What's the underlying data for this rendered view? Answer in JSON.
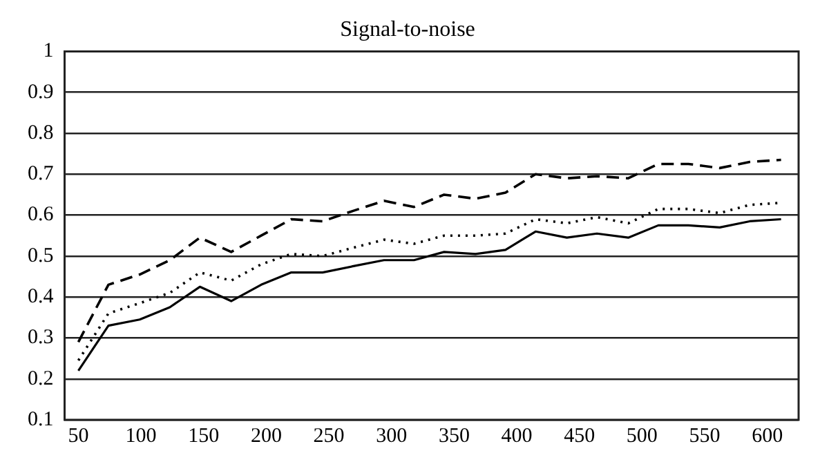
{
  "chart_data": {
    "type": "line",
    "title": "Signal-to-noise",
    "x": [
      50,
      74,
      99,
      123,
      147,
      172,
      196,
      220,
      245,
      269,
      294,
      318,
      342,
      367,
      391,
      415,
      440,
      464,
      489,
      513,
      537,
      562,
      586,
      611
    ],
    "series": [
      {
        "color": "#000000",
        "line_style": "dashed",
        "values": [
          0.29,
          0.43,
          0.455,
          0.49,
          0.545,
          0.51,
          0.55,
          0.59,
          0.585,
          0.61,
          0.635,
          0.62,
          0.65,
          0.64,
          0.655,
          0.7,
          0.69,
          0.695,
          0.69,
          0.725,
          0.725,
          0.715,
          0.73,
          0.735
        ]
      },
      {
        "color": "#000000",
        "line_style": "dotted",
        "values": [
          0.245,
          0.36,
          0.385,
          0.41,
          0.46,
          0.44,
          0.48,
          0.505,
          0.5,
          0.52,
          0.54,
          0.53,
          0.55,
          0.55,
          0.555,
          0.59,
          0.58,
          0.595,
          0.58,
          0.615,
          0.615,
          0.605,
          0.625,
          0.63
        ]
      },
      {
        "color": "#000000",
        "line_style": "solid",
        "values": [
          0.22,
          0.33,
          0.345,
          0.375,
          0.425,
          0.39,
          0.43,
          0.46,
          0.46,
          0.475,
          0.49,
          0.49,
          0.51,
          0.505,
          0.515,
          0.56,
          0.545,
          0.555,
          0.545,
          0.575,
          0.575,
          0.57,
          0.585,
          0.59
        ]
      }
    ],
    "xlim": [
      39,
      625
    ],
    "xticks": [
      50,
      100,
      150,
      200,
      250,
      300,
      350,
      400,
      450,
      500,
      550,
      600
    ],
    "ylim": [
      0.1,
      1
    ],
    "yticks": [
      0.1,
      0.2,
      0.3,
      0.4,
      0.5,
      0.6,
      0.7,
      0.8,
      0.9,
      1
    ],
    "grid": "y",
    "legend": false,
    "marker": "none"
  }
}
